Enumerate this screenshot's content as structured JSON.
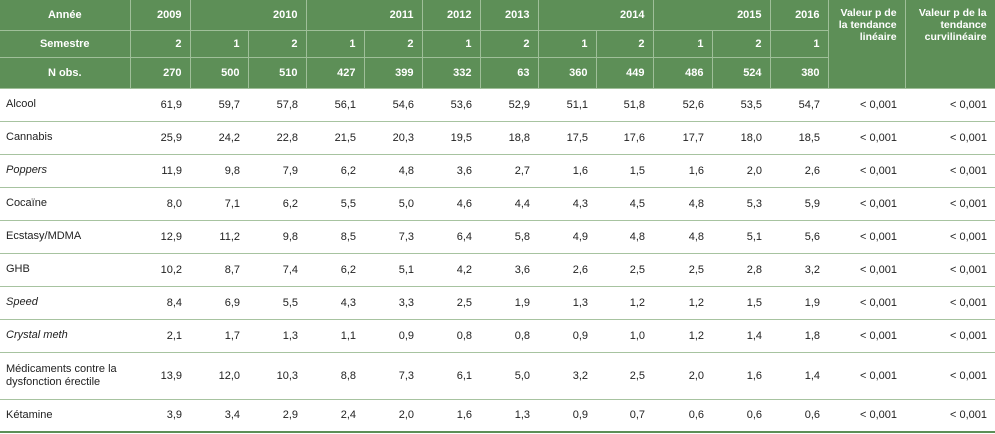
{
  "header": {
    "year_label": "Année",
    "years": [
      "2009",
      null,
      "2010",
      null,
      "2011",
      "2012",
      "2013",
      null,
      "2014",
      null,
      "2015",
      "2016"
    ],
    "semester_label": "Semestre",
    "semesters": [
      "2",
      "1",
      "2",
      "1",
      "2",
      "1",
      "2",
      "1",
      "2",
      "1",
      "2",
      "1"
    ],
    "n_label": "N obs.",
    "n": [
      "270",
      "500",
      "510",
      "427",
      "399",
      "332",
      "63",
      "360",
      "449",
      "486",
      "524",
      "380"
    ],
    "p_linear": "Valeur p de la tendance linéaire",
    "p_curvilinear": "Valeur p de la tendance curvilinéaire"
  },
  "rows": [
    {
      "label": "Alcool",
      "italic": false,
      "values": [
        "61,9",
        "59,7",
        "57,8",
        "56,1",
        "54,6",
        "53,6",
        "52,9",
        "51,1",
        "51,8",
        "52,6",
        "53,5",
        "54,7"
      ],
      "p_linear": "< 0,001",
      "p_curvilinear": "< 0,001"
    },
    {
      "label": "Cannabis",
      "italic": false,
      "values": [
        "25,9",
        "24,2",
        "22,8",
        "21,5",
        "20,3",
        "19,5",
        "18,8",
        "17,5",
        "17,6",
        "17,7",
        "18,0",
        "18,5"
      ],
      "p_linear": "< 0,001",
      "p_curvilinear": "< 0,001"
    },
    {
      "label": "Poppers",
      "italic": true,
      "values": [
        "11,9",
        "9,8",
        "7,9",
        "6,2",
        "4,8",
        "3,6",
        "2,7",
        "1,6",
        "1,5",
        "1,6",
        "2,0",
        "2,6"
      ],
      "p_linear": "< 0,001",
      "p_curvilinear": "< 0,001"
    },
    {
      "label": "Cocaïne",
      "italic": false,
      "values": [
        "8,0",
        "7,1",
        "6,2",
        "5,5",
        "5,0",
        "4,6",
        "4,4",
        "4,3",
        "4,5",
        "4,8",
        "5,3",
        "5,9"
      ],
      "p_linear": "< 0,001",
      "p_curvilinear": "< 0,001"
    },
    {
      "label": "Ecstasy/MDMA",
      "italic": false,
      "values": [
        "12,9",
        "11,2",
        "9,8",
        "8,5",
        "7,3",
        "6,4",
        "5,8",
        "4,9",
        "4,8",
        "4,8",
        "5,1",
        "5,6"
      ],
      "p_linear": "< 0,001",
      "p_curvilinear": "< 0,001"
    },
    {
      "label": "GHB",
      "italic": false,
      "values": [
        "10,2",
        "8,7",
        "7,4",
        "6,2",
        "5,1",
        "4,2",
        "3,6",
        "2,6",
        "2,5",
        "2,5",
        "2,8",
        "3,2"
      ],
      "p_linear": "< 0,001",
      "p_curvilinear": "< 0,001"
    },
    {
      "label": "Speed",
      "italic": true,
      "values": [
        "8,4",
        "6,9",
        "5,5",
        "4,3",
        "3,3",
        "2,5",
        "1,9",
        "1,3",
        "1,2",
        "1,2",
        "1,5",
        "1,9"
      ],
      "p_linear": "< 0,001",
      "p_curvilinear": "< 0,001"
    },
    {
      "label": "Crystal meth",
      "italic": true,
      "values": [
        "2,1",
        "1,7",
        "1,3",
        "1,1",
        "0,9",
        "0,8",
        "0,8",
        "0,9",
        "1,0",
        "1,2",
        "1,4",
        "1,8"
      ],
      "p_linear": "< 0,001",
      "p_curvilinear": "< 0,001"
    },
    {
      "label": "Médicaments contre la dysfonction érectile",
      "italic": false,
      "values": [
        "13,9",
        "12,0",
        "10,3",
        "8,8",
        "7,3",
        "6,1",
        "5,0",
        "3,2",
        "2,5",
        "2,0",
        "1,6",
        "1,4"
      ],
      "p_linear": "< 0,001",
      "p_curvilinear": "< 0,001"
    },
    {
      "label": "Kétamine",
      "italic": false,
      "values": [
        "3,9",
        "3,4",
        "2,9",
        "2,4",
        "2,0",
        "1,6",
        "1,3",
        "0,9",
        "0,7",
        "0,6",
        "0,6",
        "0,6"
      ],
      "p_linear": "< 0,001",
      "p_curvilinear": "< 0,001"
    }
  ]
}
